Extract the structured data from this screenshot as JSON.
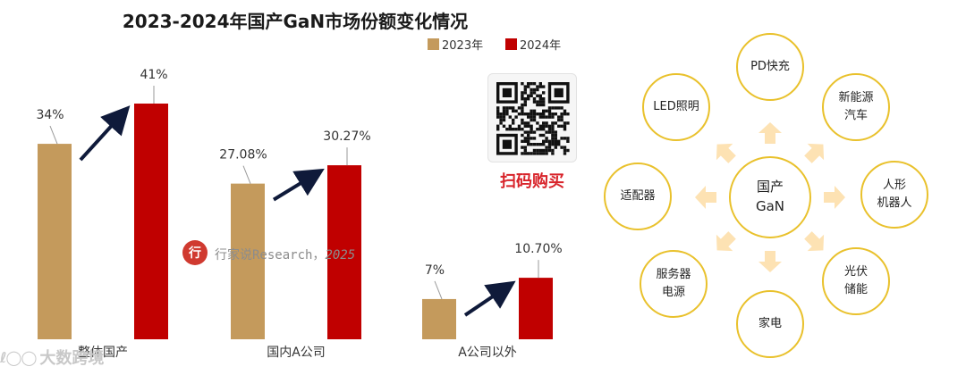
{
  "chart_data": {
    "type": "bar",
    "title": "2023-2024年国产GaN市场份额变化情况",
    "categories": [
      "整体国产",
      "国内A公司",
      "A公司以外"
    ],
    "series": [
      {
        "name": "2023年",
        "values": [
          34,
          27.08,
          7
        ],
        "labels": [
          "34%",
          "27.08%",
          "7%"
        ],
        "color": "#c49a5c"
      },
      {
        "name": "2024年",
        "values": [
          41,
          30.27,
          10.7
        ],
        "labels": [
          "41%",
          "30.27%",
          "10.70%"
        ],
        "color": "#c00000"
      }
    ],
    "value_unit": "%",
    "ylim": [
      0,
      41
    ],
    "y_axis_visible": false,
    "grid": false,
    "legend_position": "top-right",
    "annotations": "arrow from each 2023 bar to its 2024 bar"
  },
  "promo": {
    "qr_caption": "扫码购买",
    "watermark_logo": "行",
    "watermark_text": "行家说Research，",
    "watermark_year": "2025"
  },
  "footer": {
    "mark": "ℓ◯◯",
    "text": "大数跨境"
  },
  "diagram": {
    "accent_color": "#e9c12c",
    "arrow_color": "#fde2b3",
    "center": {
      "line1": "国产",
      "line2": "GaN"
    },
    "nodes": [
      {
        "id": "pd",
        "line1": "PD快充",
        "line2": ""
      },
      {
        "id": "nev",
        "line1": "新能源",
        "line2": "汽车"
      },
      {
        "id": "robot",
        "line1": "人形",
        "line2": "机器人"
      },
      {
        "id": "pv",
        "line1": "光伏",
        "line2": "储能"
      },
      {
        "id": "appliance",
        "line1": "家电",
        "line2": ""
      },
      {
        "id": "server",
        "line1": "服务器",
        "line2": "电源"
      },
      {
        "id": "adapter",
        "line1": "适配器",
        "line2": ""
      },
      {
        "id": "led",
        "line1": "LED照明",
        "line2": ""
      }
    ]
  }
}
